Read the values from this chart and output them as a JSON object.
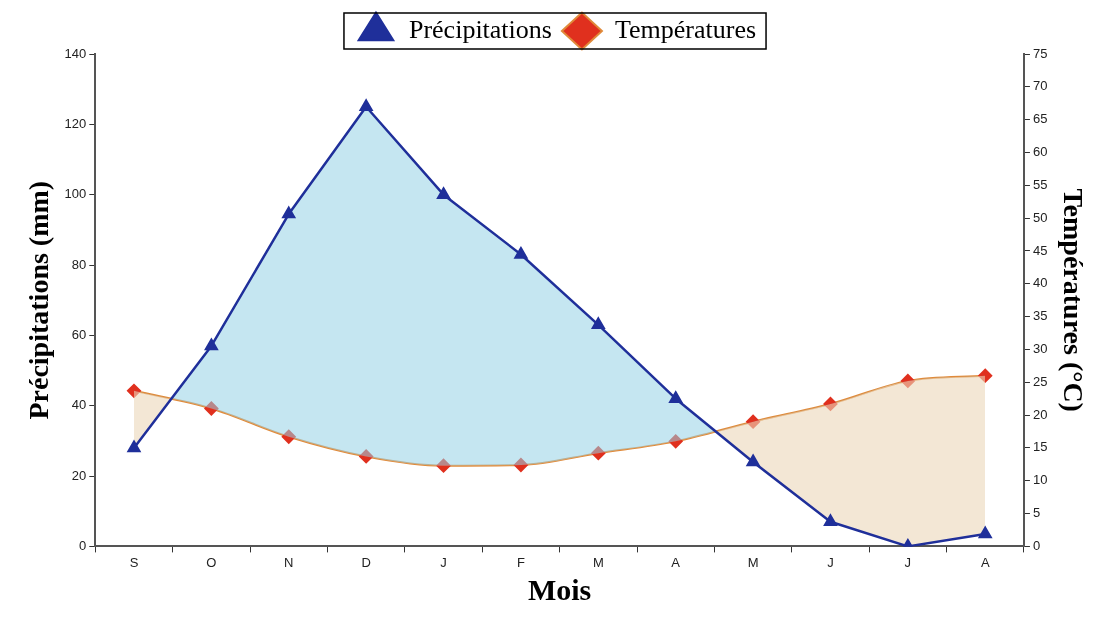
{
  "chart_data": {
    "type": "line",
    "xlabel": "Mois",
    "ylabel": "Précipitations (mm)",
    "y2label": "Températures (°C)",
    "categories": [
      "S",
      "O",
      "N",
      "D",
      "J",
      "F",
      "M",
      "A",
      "M",
      "J",
      "J",
      "A"
    ],
    "series": [
      {
        "name": "Précipitations",
        "color": "#1f2f9a",
        "marker": "triangle",
        "values": [
          28,
          57,
          94.5,
          125,
          100,
          83,
          63,
          42,
          24,
          7,
          0,
          3.5
        ]
      },
      {
        "name": "Températures",
        "color": "#e0301e",
        "marker": "diamond",
        "axis": "y2",
        "values": [
          23.7,
          21,
          16.7,
          13.7,
          12.3,
          12.4,
          14.2,
          16,
          19,
          21.7,
          25.2,
          26
        ]
      }
    ],
    "ylim": [
      0,
      140
    ],
    "yticks": [
      0,
      20,
      40,
      60,
      80,
      100,
      120,
      140
    ],
    "y2lim": [
      0,
      75
    ],
    "y2ticks": [
      0,
      5,
      10,
      15,
      20,
      25,
      30,
      35,
      40,
      45,
      50,
      55,
      60,
      65,
      70,
      75
    ],
    "legend": "top",
    "grid": false
  }
}
